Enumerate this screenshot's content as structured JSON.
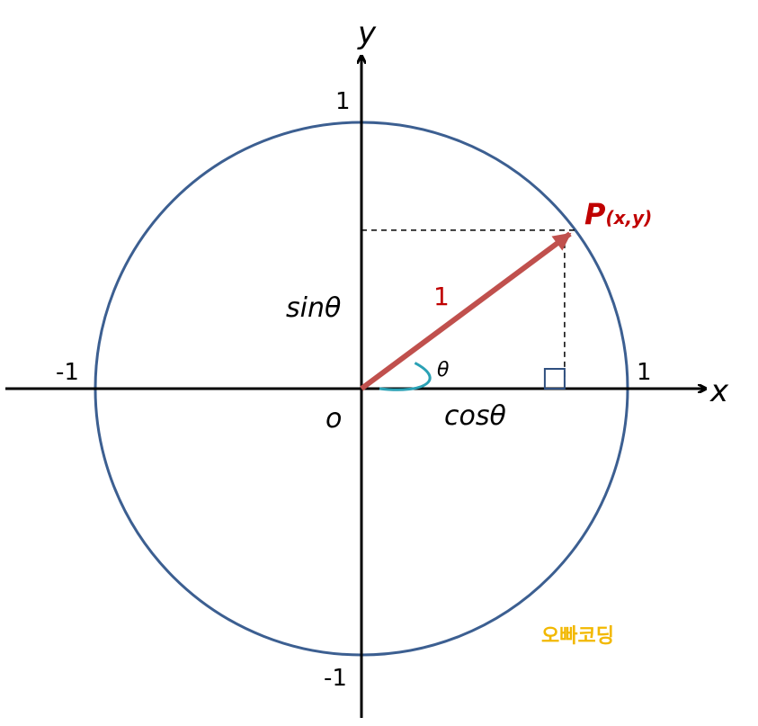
{
  "labels": {
    "y_axis": "y",
    "x_axis": "x",
    "origin": "o",
    "y_top": "1",
    "y_bottom": "-1",
    "x_left": "-1",
    "x_right": "1",
    "sin": "sinθ",
    "cos": "cosθ",
    "theta": "θ",
    "radius": "1",
    "point_P": "P",
    "point_coords": "(x,y)"
  },
  "watermark": "오빠코딩",
  "point_angle_deg": 36.5,
  "colors": {
    "circle": "#3c5f91",
    "vector": "#c0504d",
    "point_label": "#c00000",
    "angle_arc": "#2aa1b5",
    "axes": "#000000",
    "watermark": "#f2b800"
  }
}
